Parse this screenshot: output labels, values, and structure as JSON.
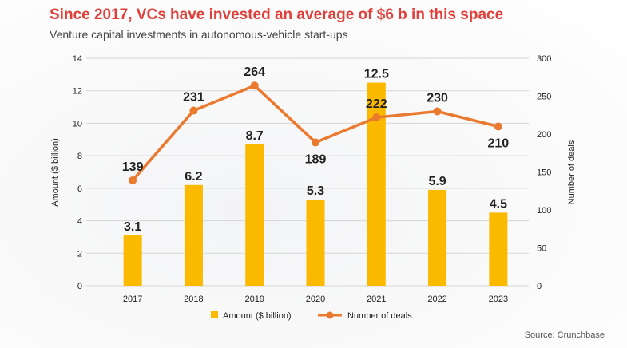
{
  "title": "Since 2017, VCs have invested an average of $6 b in this space",
  "subtitle": "Venture capital investments in autonomous-vehicle start-ups",
  "source": "Source: Crunchbase",
  "colors": {
    "bars": "#fbb900",
    "line": "#ea7a30",
    "title": "#e0403a"
  },
  "chart_data": {
    "type": "bar",
    "categories": [
      "2017",
      "2018",
      "2019",
      "2020",
      "2021",
      "2022",
      "2023"
    ],
    "series": [
      {
        "name": "Amount ($ billion)",
        "type": "bar",
        "axis": "left",
        "values": [
          3.1,
          6.2,
          8.7,
          5.3,
          12.5,
          5.9,
          4.5
        ],
        "labels": [
          "3.1",
          "6.2",
          "8.7",
          "5.3",
          "12.5",
          "5.9",
          "4.5"
        ]
      },
      {
        "name": "Number of deals",
        "type": "line",
        "axis": "right",
        "values": [
          139,
          231,
          264,
          189,
          222,
          230,
          210
        ],
        "labels": [
          "139",
          "231",
          "264",
          "189",
          "222",
          "230",
          "210"
        ]
      }
    ],
    "ylabel": "Amount ($ billion)",
    "y2label": "Number of deals",
    "ylim": [
      0,
      14
    ],
    "y2lim": [
      0,
      300
    ],
    "yticks": [
      "0",
      "2",
      "4",
      "6",
      "8",
      "10",
      "12",
      "14"
    ],
    "y2ticks": [
      "0",
      "50",
      "100",
      "150",
      "200",
      "250",
      "300"
    ],
    "grid": true,
    "legend": "bottom"
  }
}
